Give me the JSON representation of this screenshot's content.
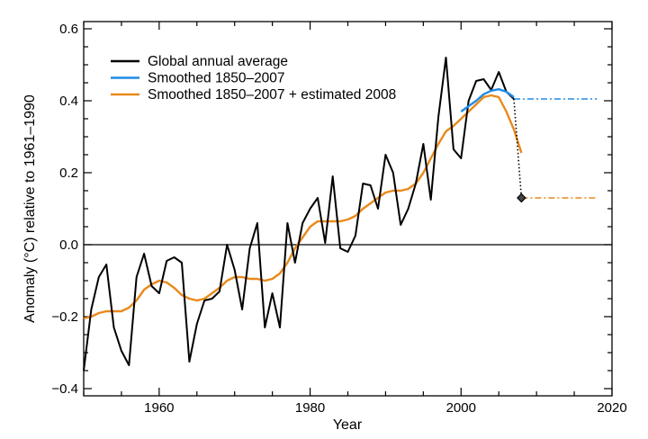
{
  "chart_data": {
    "type": "line",
    "xlabel": "Year",
    "ylabel": "Anomaly (°C) relative to 1961–1990",
    "xlim": [
      1950,
      2020
    ],
    "ylim": [
      -0.42,
      0.62
    ],
    "xticks": [
      1960,
      1980,
      2000,
      2020
    ],
    "xtick_labels": [
      "1960",
      "1980",
      "2000",
      "2020"
    ],
    "yticks": [
      -0.4,
      -0.2,
      0.0,
      0.2,
      0.4,
      0.6
    ],
    "ytick_labels": [
      "−0.4",
      "−0.2",
      "0.0",
      "0.2",
      "0.4",
      "0.6"
    ],
    "legend_position": "top-left",
    "grid": false,
    "series": [
      {
        "name": "Global annual average",
        "color": "#000000",
        "x": [
          1950,
          1951,
          1952,
          1953,
          1954,
          1955,
          1956,
          1957,
          1958,
          1959,
          1960,
          1961,
          1962,
          1963,
          1964,
          1965,
          1966,
          1967,
          1968,
          1969,
          1970,
          1971,
          1972,
          1973,
          1974,
          1975,
          1976,
          1977,
          1978,
          1979,
          1980,
          1981,
          1982,
          1983,
          1984,
          1985,
          1986,
          1987,
          1988,
          1989,
          1990,
          1991,
          1992,
          1993,
          1994,
          1995,
          1996,
          1997,
          1998,
          1999,
          2000,
          2001,
          2002,
          2003,
          2004,
          2005,
          2006,
          2007
        ],
        "y": [
          -0.35,
          -0.18,
          -0.09,
          -0.055,
          -0.23,
          -0.295,
          -0.335,
          -0.09,
          -0.025,
          -0.115,
          -0.135,
          -0.045,
          -0.035,
          -0.05,
          -0.325,
          -0.22,
          -0.155,
          -0.15,
          -0.13,
          0.0,
          -0.07,
          -0.18,
          -0.01,
          0.06,
          -0.23,
          -0.135,
          -0.23,
          0.06,
          -0.05,
          0.06,
          0.1,
          0.13,
          0.005,
          0.19,
          -0.01,
          -0.02,
          0.025,
          0.17,
          0.165,
          0.1,
          0.25,
          0.2,
          0.055,
          0.1,
          0.17,
          0.28,
          0.125,
          0.355,
          0.52,
          0.265,
          0.24,
          0.4,
          0.455,
          0.46,
          0.43,
          0.48,
          0.425,
          0.405
        ]
      },
      {
        "name": "Smoothed 1850–2007",
        "color": "#1f8ce6",
        "x": [
          2000,
          2001,
          2002,
          2003,
          2004,
          2005,
          2006,
          2007
        ],
        "y": [
          0.37,
          0.385,
          0.4,
          0.418,
          0.428,
          0.432,
          0.425,
          0.41
        ]
      },
      {
        "name": "Smoothed 1850–2007 + estimated 2008",
        "color": "#e9891b",
        "x": [
          1950,
          1951,
          1952,
          1953,
          1954,
          1955,
          1956,
          1957,
          1958,
          1959,
          1960,
          1961,
          1962,
          1963,
          1964,
          1965,
          1966,
          1967,
          1968,
          1969,
          1970,
          1971,
          1972,
          1973,
          1974,
          1975,
          1976,
          1977,
          1978,
          1979,
          1980,
          1981,
          1982,
          1983,
          1984,
          1985,
          1986,
          1987,
          1988,
          1989,
          1990,
          1991,
          1992,
          1993,
          1994,
          1995,
          1996,
          1997,
          1998,
          1999,
          2000,
          2001,
          2002,
          2003,
          2004,
          2005,
          2006,
          2007,
          2008
        ],
        "y": [
          -0.205,
          -0.2,
          -0.19,
          -0.185,
          -0.185,
          -0.185,
          -0.175,
          -0.155,
          -0.125,
          -0.11,
          -0.1,
          -0.105,
          -0.12,
          -0.14,
          -0.15,
          -0.155,
          -0.15,
          -0.135,
          -0.12,
          -0.1,
          -0.09,
          -0.09,
          -0.095,
          -0.095,
          -0.1,
          -0.095,
          -0.08,
          -0.05,
          -0.01,
          0.02,
          0.05,
          0.065,
          0.065,
          0.065,
          0.065,
          0.07,
          0.08,
          0.1,
          0.115,
          0.13,
          0.145,
          0.15,
          0.15,
          0.155,
          0.17,
          0.2,
          0.24,
          0.28,
          0.315,
          0.33,
          0.35,
          0.37,
          0.39,
          0.41,
          0.415,
          0.41,
          0.37,
          0.32,
          0.255
        ]
      }
    ],
    "projection_lines": [
      {
        "color": "#1f8ce6",
        "from": [
          2007,
          0.405
        ],
        "to": [
          2018,
          0.405
        ],
        "style": "dash-dot"
      },
      {
        "color": "#e9891b",
        "from": [
          2008,
          0.13
        ],
        "to": [
          2018,
          0.13
        ],
        "style": "dash-dot"
      }
    ],
    "connector": {
      "color": "#000000",
      "from": [
        2007,
        0.405
      ],
      "to": [
        2008,
        0.13
      ],
      "style": "dotted"
    },
    "marker": {
      "x": 2008,
      "y": 0.13,
      "shape": "diamond",
      "color": "#000000"
    }
  }
}
